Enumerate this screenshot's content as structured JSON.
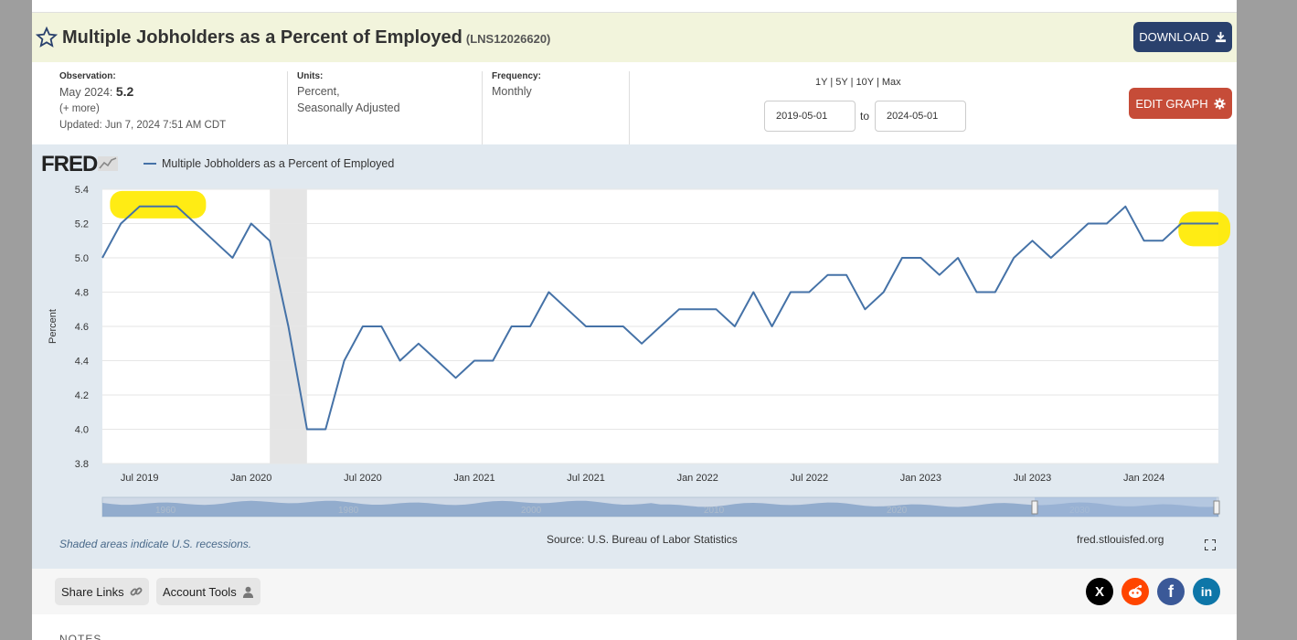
{
  "header": {
    "title": "Multiple Jobholders as a Percent of Employed",
    "series_id": "(LNS12026620)",
    "download_label": "DOWNLOAD"
  },
  "meta": {
    "observation_label": "Observation:",
    "observation_date": "May 2024:",
    "observation_value": "5.2",
    "more": "(+ more)",
    "updated": "Updated: Jun 7, 2024 7:51 AM CDT",
    "units_label": "Units:",
    "units_line1": "Percent,",
    "units_line2": "Seasonally Adjusted",
    "frequency_label": "Frequency:",
    "frequency_value": "Monthly"
  },
  "controls": {
    "range_1y": "1Y",
    "range_5y": "5Y",
    "range_10y": "10Y",
    "range_max": "Max",
    "sep": "|",
    "date_from": "2019-05-01",
    "to": "to",
    "date_to": "2024-05-01",
    "edit_label": "EDIT GRAPH"
  },
  "chart_meta": {
    "logo": "FRED",
    "recession_note": "Shaded areas indicate U.S. recessions.",
    "source": "Source: U.S. Bureau of Labor Statistics",
    "url": "fred.stlouisfed.org"
  },
  "chart_data": {
    "type": "line",
    "ylabel": "Percent",
    "ylim": [
      3.8,
      5.4
    ],
    "y_ticks": [
      3.8,
      4.0,
      4.2,
      4.4,
      4.6,
      4.8,
      5.0,
      5.2,
      5.4
    ],
    "x_ticks": [
      "Jul 2019",
      "Jan 2020",
      "Jul 2020",
      "Jan 2021",
      "Jul 2021",
      "Jan 2022",
      "Jul 2022",
      "Jan 2023",
      "Jul 2023",
      "Jan 2024"
    ],
    "x_start": "2019-05",
    "x_end": "2024-05",
    "recession": [
      "2020-02",
      "2020-04"
    ],
    "series": [
      {
        "name": "Multiple Jobholders as a Percent of Employed",
        "color": "#4572a7",
        "x": [
          "2019-05",
          "2019-06",
          "2019-07",
          "2019-08",
          "2019-09",
          "2019-10",
          "2019-11",
          "2019-12",
          "2020-01",
          "2020-02",
          "2020-03",
          "2020-04",
          "2020-05",
          "2020-06",
          "2020-07",
          "2020-08",
          "2020-09",
          "2020-10",
          "2020-11",
          "2020-12",
          "2021-01",
          "2021-02",
          "2021-03",
          "2021-04",
          "2021-05",
          "2021-06",
          "2021-07",
          "2021-08",
          "2021-09",
          "2021-10",
          "2021-11",
          "2021-12",
          "2022-01",
          "2022-02",
          "2022-03",
          "2022-04",
          "2022-05",
          "2022-06",
          "2022-07",
          "2022-08",
          "2022-09",
          "2022-10",
          "2022-11",
          "2022-12",
          "2023-01",
          "2023-02",
          "2023-03",
          "2023-04",
          "2023-05",
          "2023-06",
          "2023-07",
          "2023-08",
          "2023-09",
          "2023-10",
          "2023-11",
          "2023-12",
          "2024-01",
          "2024-02",
          "2024-03",
          "2024-04",
          "2024-05"
        ],
        "values": [
          5.0,
          5.2,
          5.3,
          5.3,
          5.3,
          5.2,
          5.1,
          5.0,
          5.2,
          5.1,
          4.6,
          4.0,
          4.0,
          4.4,
          4.6,
          4.6,
          4.4,
          4.5,
          4.4,
          4.3,
          4.4,
          4.4,
          4.6,
          4.6,
          4.8,
          4.7,
          4.6,
          4.6,
          4.6,
          4.5,
          4.6,
          4.7,
          4.7,
          4.7,
          4.6,
          4.8,
          4.6,
          4.8,
          4.8,
          4.9,
          4.9,
          4.7,
          4.8,
          5.0,
          5.0,
          4.9,
          5.0,
          4.8,
          4.8,
          5.0,
          5.1,
          5.0,
          5.1,
          5.2,
          5.2,
          5.3,
          5.1,
          5.1,
          5.2,
          5.2,
          5.2
        ]
      }
    ]
  },
  "navigator": {
    "labels": [
      "1960",
      "1980",
      "2000",
      "2010",
      "2020",
      "2030"
    ]
  },
  "bottom": {
    "share_label": "Share Links",
    "account_label": "Account Tools",
    "notes_label": "NOTES"
  },
  "social": {
    "x_letter": "X",
    "facebook_letter": "f",
    "linkedin_letter": "in"
  }
}
